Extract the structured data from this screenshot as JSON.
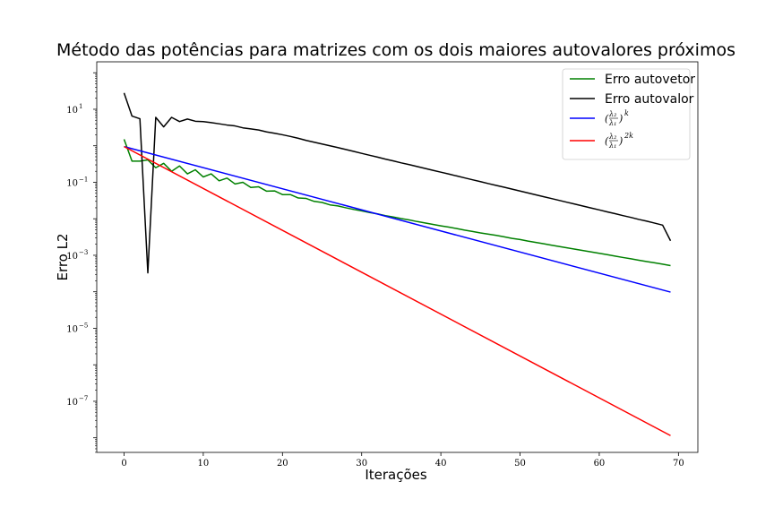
{
  "chart_data": {
    "type": "line",
    "title": "Método das potências para matrizes com os dois maiores autovalores próximos",
    "xlabel": "Iterações",
    "ylabel": "Erro L2",
    "xlim": [
      -3.45,
      72.45
    ],
    "ylim_log10": [
      -8.4,
      2.3
    ],
    "yscale": "log",
    "grid": false,
    "legend_position": "top-right",
    "x_ticks": [
      "0",
      "10",
      "20",
      "30",
      "40",
      "50",
      "60",
      "70"
    ],
    "y_ticks": [
      {
        "base": "10",
        "exp": "1"
      },
      {
        "base": "10",
        "exp": "−1"
      },
      {
        "base": "10",
        "exp": "−3"
      },
      {
        "base": "10",
        "exp": "−5"
      },
      {
        "base": "10",
        "exp": "−7"
      }
    ],
    "series": [
      {
        "name": "Erro autovetor",
        "color": "#008000",
        "x": [
          0,
          1,
          2,
          3,
          4,
          5,
          6,
          7,
          8,
          9,
          10,
          11,
          12,
          13,
          14,
          15,
          16,
          17,
          18,
          19,
          20,
          21,
          22,
          23,
          24,
          25,
          26,
          27,
          28,
          29,
          30,
          31,
          32,
          33,
          34,
          35,
          36,
          37,
          38,
          39,
          40,
          41,
          42,
          43,
          44,
          45,
          46,
          47,
          48,
          49,
          50,
          51,
          52,
          53,
          54,
          55,
          56,
          57,
          58,
          59,
          60,
          61,
          62,
          63,
          64,
          65,
          66,
          67,
          68,
          69
        ],
        "y": [
          1.5,
          0.38,
          0.38,
          0.41,
          0.25,
          0.33,
          0.2,
          0.28,
          0.17,
          0.22,
          0.14,
          0.17,
          0.11,
          0.13,
          0.09,
          0.1,
          0.072,
          0.075,
          0.057,
          0.058,
          0.046,
          0.046,
          0.037,
          0.036,
          0.03,
          0.028,
          0.024,
          0.0225,
          0.02,
          0.018,
          0.0165,
          0.0148,
          0.0136,
          0.0122,
          0.0112,
          0.0101,
          0.0093,
          0.0084,
          0.0077,
          0.007,
          0.0064,
          0.0059,
          0.0054,
          0.0049,
          0.0045,
          0.0041,
          0.0038,
          0.0035,
          0.0032,
          0.0029,
          0.0027,
          0.00245,
          0.00225,
          0.00206,
          0.00189,
          0.00173,
          0.00159,
          0.00146,
          0.00134,
          0.00123,
          0.00113,
          0.00104,
          0.00095,
          0.00087,
          0.0008,
          0.00073,
          0.00067,
          0.00062,
          0.00057,
          0.00052
        ]
      },
      {
        "name": "Erro autovalor",
        "color": "#000000",
        "x": [
          0,
          1,
          2,
          3,
          4,
          5,
          6,
          7,
          8,
          9,
          10,
          11,
          12,
          13,
          14,
          15,
          16,
          17,
          18,
          19,
          20,
          21,
          22,
          23,
          24,
          25,
          26,
          27,
          28,
          29,
          30,
          31,
          32,
          33,
          34,
          35,
          36,
          37,
          38,
          39,
          40,
          41,
          42,
          43,
          44,
          45,
          46,
          47,
          48,
          49,
          50,
          51,
          52,
          53,
          54,
          55,
          56,
          57,
          58,
          59,
          60,
          61,
          62,
          63,
          64,
          65,
          66,
          67,
          68,
          69
        ],
        "y": [
          28,
          6.5,
          5.5,
          0.00033,
          6,
          3.3,
          6,
          4.6,
          5.4,
          4.7,
          4.6,
          4.3,
          4.0,
          3.7,
          3.5,
          3.1,
          2.9,
          2.7,
          2.4,
          2.2,
          2.0,
          1.8,
          1.6,
          1.4,
          1.25,
          1.12,
          1.0,
          0.89,
          0.79,
          0.7,
          0.62,
          0.55,
          0.49,
          0.43,
          0.385,
          0.34,
          0.305,
          0.27,
          0.24,
          0.213,
          0.189,
          0.168,
          0.149,
          0.132,
          0.117,
          0.104,
          0.092,
          0.082,
          0.073,
          0.065,
          0.0575,
          0.051,
          0.0453,
          0.0402,
          0.0357,
          0.0317,
          0.0281,
          0.025,
          0.0222,
          0.0197,
          0.0175,
          0.0155,
          0.0138,
          0.0122,
          0.0109,
          0.0096,
          0.0086,
          0.0076,
          0.0067,
          0.0025
        ]
      },
      {
        "name": "(λ2/λ1)^k",
        "color": "#0000ff",
        "x": [
          0,
          69
        ],
        "y": [
          0.95,
          9.8e-05
        ]
      },
      {
        "name": "(λ2/λ1)^2k",
        "color": "#ff0000",
        "x": [
          0,
          69
        ],
        "y": [
          0.95,
          1.15e-08
        ]
      }
    ]
  }
}
